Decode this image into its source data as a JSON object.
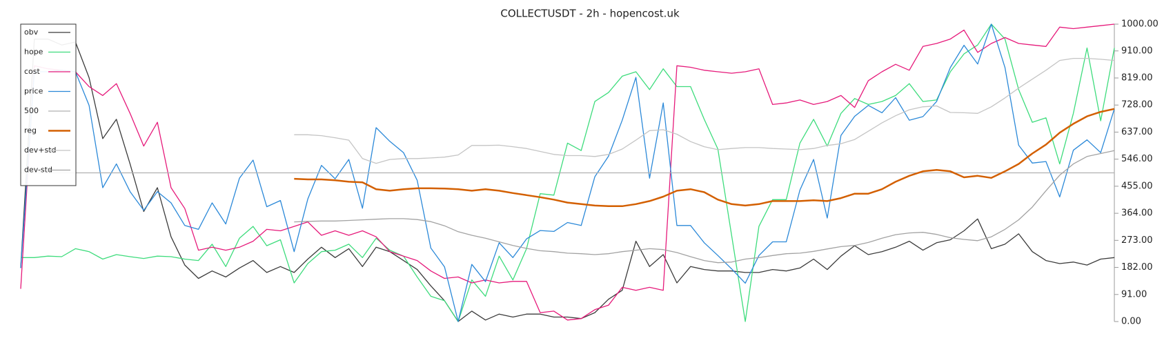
{
  "chart_data": {
    "type": "line",
    "title": "COLLECTUSDT - 2h - hopencost.uk",
    "ylim": [
      0,
      1000
    ],
    "yticks": [
      {
        "value": 0,
        "label": "0.00"
      },
      {
        "value": 91,
        "label": "91.00"
      },
      {
        "value": 182,
        "label": "182.00"
      },
      {
        "value": 273,
        "label": "273.00"
      },
      {
        "value": 364,
        "label": "364.00"
      },
      {
        "value": 455,
        "label": "455.00"
      },
      {
        "value": 546,
        "label": "546.00"
      },
      {
        "value": 637,
        "label": "637.00"
      },
      {
        "value": 728,
        "label": "728.00"
      },
      {
        "value": 819,
        "label": "819.00"
      },
      {
        "value": 910,
        "label": "910.00"
      },
      {
        "value": 1000,
        "label": "1000.00"
      }
    ],
    "y_axis_side": "right",
    "legend": "upper left",
    "series": [
      {
        "name": "obv",
        "color": "#3a3a3a",
        "values": [
          180,
          950,
          950,
          930,
          940,
          820,
          615,
          680,
          530,
          370,
          450,
          285,
          190,
          145,
          170,
          150,
          180,
          205,
          165,
          185,
          165,
          210,
          250,
          215,
          245,
          185,
          250,
          235,
          205,
          175,
          120,
          70,
          0,
          35,
          5,
          25,
          15,
          25,
          25,
          15,
          15,
          10,
          30,
          75,
          105,
          270,
          185,
          225,
          130,
          185,
          175,
          170,
          170,
          165,
          165,
          175,
          170,
          180,
          210,
          175,
          220,
          255,
          225,
          235,
          250,
          270,
          240,
          265,
          275,
          305,
          345,
          245,
          260,
          295,
          235,
          205,
          195,
          200,
          190,
          210,
          215
        ]
      },
      {
        "name": "hope",
        "color": "#3ddc7c",
        "values": [
          215,
          215,
          220,
          218,
          245,
          235,
          210,
          225,
          218,
          212,
          220,
          218,
          210,
          205,
          260,
          185,
          280,
          320,
          255,
          275,
          130,
          195,
          235,
          240,
          260,
          215,
          280,
          240,
          220,
          150,
          85,
          70,
          0,
          140,
          85,
          220,
          140,
          245,
          430,
          425,
          600,
          575,
          740,
          770,
          825,
          840,
          780,
          850,
          790,
          790,
          680,
          580,
          290,
          0,
          320,
          410,
          410,
          600,
          680,
          590,
          700,
          750,
          730,
          740,
          760,
          800,
          740,
          745,
          840,
          900,
          930,
          1000,
          950,
          780,
          670,
          685,
          530,
          700,
          920,
          675,
          920
        ]
      },
      {
        "name": "cost",
        "color": "#e6197a",
        "values": [
          110,
          860,
          850,
          845,
          840,
          790,
          760,
          800,
          700,
          590,
          670,
          450,
          380,
          240,
          250,
          240,
          250,
          270,
          310,
          305,
          320,
          335,
          290,
          305,
          290,
          305,
          285,
          235,
          220,
          205,
          170,
          145,
          150,
          130,
          140,
          130,
          135,
          135,
          30,
          35,
          5,
          10,
          40,
          55,
          115,
          105,
          115,
          105,
          860,
          855,
          845,
          840,
          835,
          840,
          850,
          730,
          735,
          745,
          730,
          740,
          760,
          720,
          810,
          840,
          865,
          845,
          925,
          935,
          950,
          980,
          905,
          935,
          955,
          935,
          930,
          925,
          990,
          985,
          990,
          995,
          1000
        ]
      },
      {
        "name": "price",
        "color": "#2a88d8",
        "values": [
          180,
          840,
          840,
          845,
          840,
          727,
          450,
          530,
          437,
          374,
          437,
          399,
          323,
          310,
          399,
          328,
          482,
          543,
          386,
          407,
          235,
          412,
          525,
          480,
          545,
          381,
          652,
          606,
          568,
          475,
          247,
          184,
          0,
          192,
          134,
          265,
          215,
          278,
          306,
          303,
          333,
          323,
          487,
          556,
          677,
          821,
          482,
          735,
          323,
          323,
          265,
          222,
          177,
          129,
          222,
          268,
          268,
          442,
          545,
          348,
          626,
          690,
          727,
          702,
          753,
          677,
          689,
          740,
          854,
          929,
          866,
          1000,
          854,
          593,
          533,
          538,
          419,
          576,
          611,
          568,
          715
        ]
      },
      {
        "name": "500",
        "color": "#b0b0b0",
        "values": [
          500,
          500,
          500,
          500,
          500,
          500,
          500,
          500,
          500,
          500,
          500,
          500,
          500,
          500,
          500,
          500,
          500,
          500,
          500,
          500,
          500,
          500,
          500,
          500,
          500,
          500,
          500,
          500,
          500,
          500,
          500,
          500,
          500,
          500,
          500,
          500,
          500,
          500,
          500,
          500,
          500,
          500,
          500,
          500,
          500,
          500,
          500,
          500,
          500,
          500,
          500,
          500,
          500,
          500,
          500,
          500,
          500,
          500,
          500,
          500,
          500,
          500,
          500,
          500,
          500,
          500,
          500,
          500,
          500,
          500,
          500,
          500,
          500,
          500,
          500,
          500,
          500,
          500,
          500,
          500,
          500
        ]
      },
      {
        "name": "reg",
        "color": "#d35f00",
        "width": 2.5,
        "values": [
          null,
          null,
          null,
          null,
          null,
          null,
          null,
          null,
          null,
          null,
          null,
          null,
          null,
          null,
          null,
          null,
          null,
          null,
          null,
          null,
          480,
          478,
          478,
          475,
          470,
          468,
          445,
          440,
          445,
          448,
          448,
          447,
          445,
          440,
          445,
          440,
          432,
          425,
          418,
          410,
          400,
          395,
          390,
          388,
          388,
          395,
          405,
          420,
          440,
          445,
          435,
          410,
          395,
          390,
          395,
          405,
          405,
          405,
          408,
          405,
          415,
          430,
          430,
          445,
          470,
          490,
          505,
          510,
          505,
          485,
          490,
          483,
          505,
          530,
          565,
          595,
          635,
          665,
          690,
          705,
          715
        ]
      },
      {
        "name": "dev+std",
        "color": "#c4c4c4",
        "values": [
          null,
          null,
          null,
          null,
          null,
          null,
          null,
          null,
          null,
          null,
          null,
          null,
          null,
          null,
          null,
          null,
          null,
          null,
          null,
          null,
          628,
          628,
          625,
          618,
          610,
          548,
          532,
          545,
          548,
          548,
          550,
          553,
          560,
          592,
          592,
          593,
          588,
          582,
          572,
          562,
          558,
          558,
          555,
          562,
          580,
          610,
          642,
          645,
          630,
          605,
          588,
          578,
          582,
          585,
          585,
          582,
          580,
          578,
          582,
          592,
          598,
          612,
          640,
          668,
          692,
          712,
          722,
          725,
          703,
          702,
          700,
          722,
          752,
          785,
          815,
          845,
          878,
          885,
          885,
          882,
          878
        ]
      },
      {
        "name": "dev-std",
        "color": "#a2a2a2",
        "values": [
          null,
          null,
          null,
          null,
          null,
          null,
          null,
          null,
          null,
          null,
          null,
          null,
          null,
          null,
          null,
          null,
          null,
          null,
          null,
          null,
          335,
          337,
          338,
          338,
          340,
          342,
          344,
          346,
          346,
          343,
          336,
          322,
          302,
          290,
          280,
          268,
          256,
          246,
          238,
          235,
          230,
          228,
          225,
          228,
          235,
          240,
          245,
          242,
          232,
          218,
          205,
          198,
          200,
          210,
          215,
          222,
          228,
          230,
          236,
          244,
          252,
          256,
          266,
          280,
          292,
          298,
          300,
          293,
          282,
          276,
          272,
          285,
          310,
          342,
          385,
          440,
          492,
          530,
          555,
          565,
          575
        ]
      }
    ]
  }
}
